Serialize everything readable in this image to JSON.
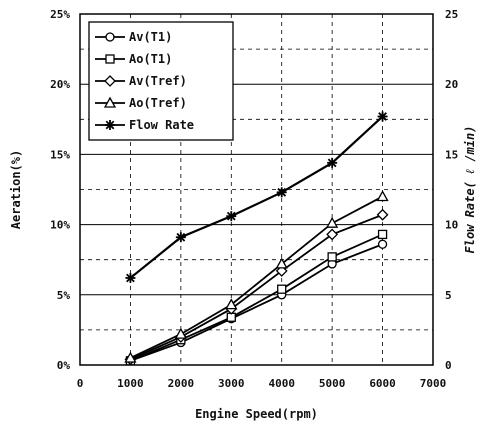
{
  "chart_data": {
    "type": "line",
    "title": "",
    "xlabel": "Engine Speed(rpm)",
    "ylabel": "Aeration(%)",
    "y2label": "Flow Rate( ℓ /min)",
    "xlim": [
      0,
      7000
    ],
    "ylim": [
      0,
      25
    ],
    "y2lim": [
      0,
      25
    ],
    "xticks": [
      "0",
      "1000",
      "2000",
      "3000",
      "4000",
      "5000",
      "6000",
      "7000"
    ],
    "yticks": [
      "0%",
      "5%",
      "10%",
      "15%",
      "20%",
      "25%"
    ],
    "y2ticks": [
      "0",
      "5",
      "10",
      "15",
      "20",
      "25"
    ],
    "grid": true,
    "legend_position": "top-left",
    "x": [
      1000,
      2000,
      3000,
      4000,
      5000,
      6000
    ],
    "series": [
      {
        "name": "Av(T1)",
        "marker": "circle",
        "axis": "left",
        "values": [
          0.3,
          1.6,
          3.3,
          5.0,
          7.2,
          8.6
        ]
      },
      {
        "name": "Ao(T1)",
        "marker": "square",
        "axis": "left",
        "values": [
          0.3,
          1.8,
          3.4,
          5.4,
          7.7,
          9.3
        ]
      },
      {
        "name": "Av(Tref)",
        "marker": "diamond",
        "axis": "left",
        "values": [
          0.4,
          2.0,
          4.0,
          6.7,
          9.3,
          10.7
        ]
      },
      {
        "name": "Ao(Tref)",
        "marker": "triangle",
        "axis": "left",
        "values": [
          0.5,
          2.2,
          4.3,
          7.2,
          10.1,
          12.0
        ]
      },
      {
        "name": "Flow Rate",
        "marker": "star",
        "axis": "right",
        "values": [
          6.2,
          9.1,
          10.6,
          12.3,
          14.4,
          17.7
        ]
      }
    ]
  }
}
